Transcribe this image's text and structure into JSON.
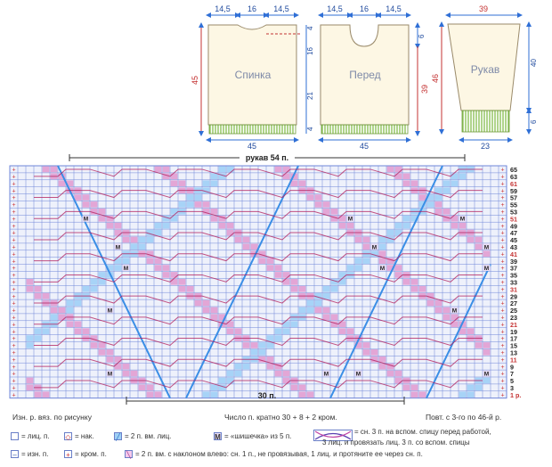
{
  "schematic": {
    "back": {
      "label": "Спинка",
      "top_widths": [
        "14,5",
        "16",
        "14,5"
      ],
      "bottom_width": "45",
      "total_height": "45",
      "side_dims": [
        "4",
        "16",
        "21",
        "4"
      ]
    },
    "front": {
      "label": "Перед",
      "top_widths": [
        "14,5",
        "16",
        "14,5"
      ],
      "bottom_width": "45",
      "total_height": "39",
      "side_dims": [
        "6"
      ]
    },
    "sleeve": {
      "label": "Рукав",
      "top_width": "39",
      "bottom_width": "23",
      "total_height": "46",
      "side_dims": [
        "40",
        "6"
      ]
    }
  },
  "chart": {
    "sleeve_label": "рукав 54 п.",
    "repeat_label": "30 п.",
    "row_numbers": [
      "65",
      "63",
      "61",
      "59",
      "57",
      "55",
      "53",
      "51",
      "49",
      "47",
      "45",
      "43",
      "41",
      "39",
      "37",
      "35",
      "33",
      "31",
      "29",
      "27",
      "25",
      "23",
      "21",
      "19",
      "17",
      "15",
      "13",
      "11",
      "9",
      "7",
      "5",
      "3",
      "1 р."
    ],
    "bobble_symbol": "M",
    "edge_symbol": "+",
    "cols": 62,
    "rows": 33,
    "colors": {
      "grid": "#6f86d8",
      "bg": "#eef1fb",
      "pink": "#e3a6d6",
      "purple": "#8a4fc4",
      "blue": "#3a8ee6",
      "red_line": "#b21b5a"
    }
  },
  "captions": {
    "left": "Изн. р. вяз. по рисунку",
    "center": "Число п. кратно 30 + 8 + 2 кром.",
    "right": "Повт. с 3-го по 46-й р."
  },
  "legend": {
    "knit": "= лиц. п.",
    "yo": "= нак.",
    "k2tog": "= 2 п. вм. лиц.",
    "bobble_symbol": "M",
    "bobble": "= «шишечка» из 5 п.",
    "cable_line1": "= сн. 3 п. на вспом. спицу перед работой,",
    "cable_line2": "3 лиц. и провязать лиц. 3 п. со вспом. спицы",
    "purl": "= изн. п.",
    "edge_symbol": "+",
    "edge": "= кром. п.",
    "ssk": "= 2 п. вм. с наклоном влево: сн. 1 п., не провязывая, 1 лиц. и протяните ее через сн. п."
  }
}
